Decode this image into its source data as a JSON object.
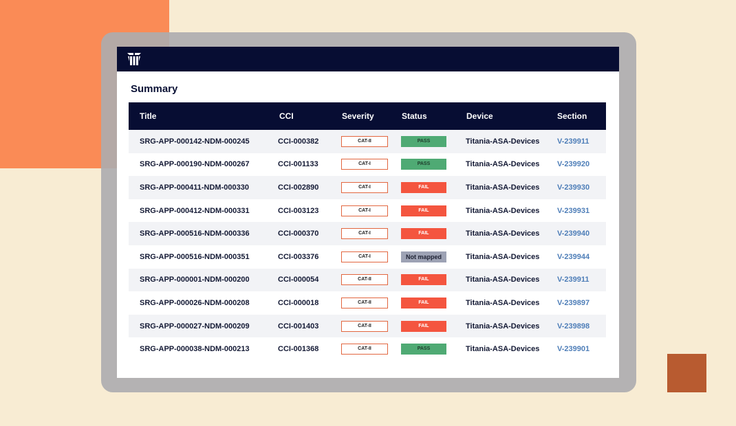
{
  "colors": {
    "header_navy": "#070d33",
    "pass": "#4faa74",
    "fail": "#f4553f",
    "not_mapped": "#9da2b4",
    "section_link": "#4e7eb8",
    "severity_border": "#e2663f"
  },
  "app": {
    "logo_icon": "titania-logo-icon"
  },
  "summary": {
    "title": "Summary",
    "columns": [
      "Title",
      "CCI",
      "Severity",
      "Status",
      "Device",
      "Section"
    ],
    "rows": [
      {
        "title": "SRG-APP-000142-NDM-000245",
        "cci": "CCI-000382",
        "severity": "CAT-II",
        "status": "PASS",
        "device": "Titania-ASA-Devices",
        "section": "V-239911"
      },
      {
        "title": "SRG-APP-000190-NDM-000267",
        "cci": "CCI-001133",
        "severity": "CAT-I",
        "status": "PASS",
        "device": "Titania-ASA-Devices",
        "section": "V-239920"
      },
      {
        "title": "SRG-APP-000411-NDM-000330",
        "cci": "CCI-002890",
        "severity": "CAT-I",
        "status": "FAIL",
        "device": "Titania-ASA-Devices",
        "section": "V-239930"
      },
      {
        "title": "SRG-APP-000412-NDM-000331",
        "cci": "CCI-003123",
        "severity": "CAT-I",
        "status": "FAIL",
        "device": "Titania-ASA-Devices",
        "section": "V-239931"
      },
      {
        "title": "SRG-APP-000516-NDM-000336",
        "cci": "CCI-000370",
        "severity": "CAT-I",
        "status": "FAIL",
        "device": "Titania-ASA-Devices",
        "section": "V-239940"
      },
      {
        "title": "SRG-APP-000516-NDM-000351",
        "cci": "CCI-003376",
        "severity": "CAT-I",
        "status": "Not mapped",
        "device": "Titania-ASA-Devices",
        "section": "V-239944"
      },
      {
        "title": "SRG-APP-000001-NDM-000200",
        "cci": "CCI-000054",
        "severity": "CAT-II",
        "status": "FAIL",
        "device": "Titania-ASA-Devices",
        "section": "V-239911"
      },
      {
        "title": "SRG-APP-000026-NDM-000208",
        "cci": "CCI-000018",
        "severity": "CAT-II",
        "status": "FAIL",
        "device": "Titania-ASA-Devices",
        "section": "V-239897"
      },
      {
        "title": "SRG-APP-000027-NDM-000209",
        "cci": "CCI-001403",
        "severity": "CAT-II",
        "status": "FAIL",
        "device": "Titania-ASA-Devices",
        "section": "V-239898"
      },
      {
        "title": "SRG-APP-000038-NDM-000213",
        "cci": "CCI-001368",
        "severity": "CAT-II",
        "status": "PASS",
        "device": "Titania-ASA-Devices",
        "section": "V-239901"
      }
    ]
  }
}
